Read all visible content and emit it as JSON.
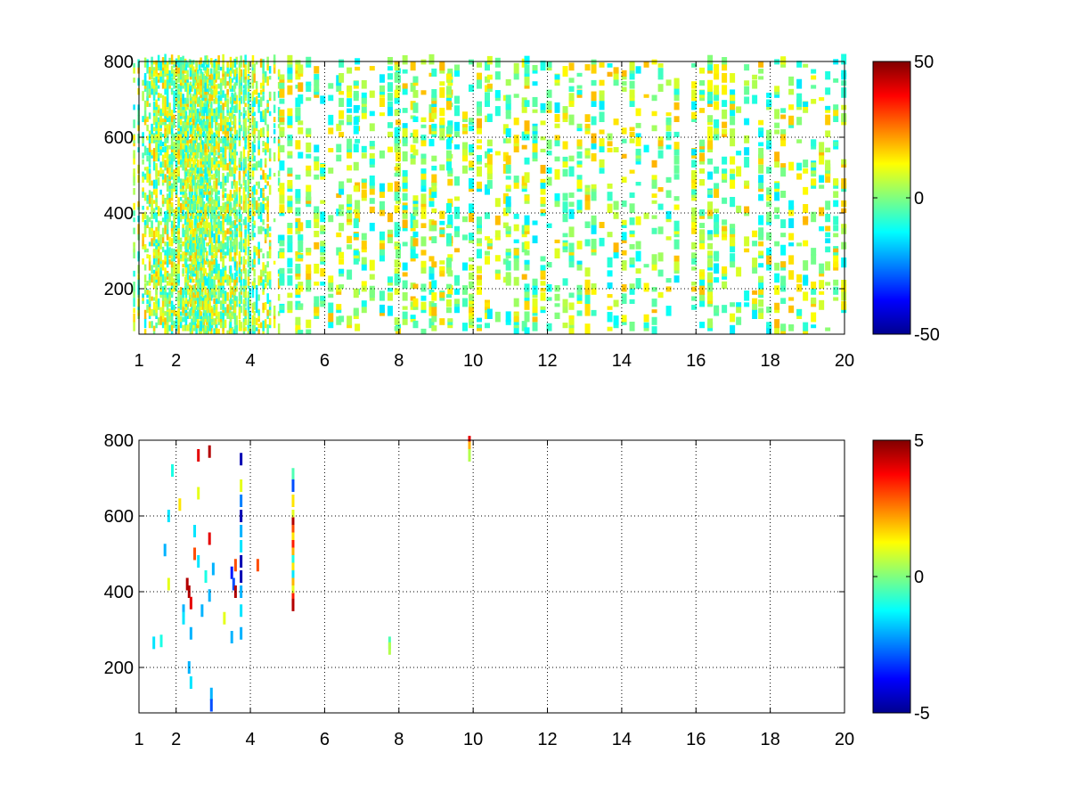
{
  "chart_data": [
    {
      "type": "heatmap",
      "title": "",
      "xlabel": "",
      "ylabel": "",
      "xlim": [
        1,
        20
      ],
      "ylim": [
        80,
        800
      ],
      "xticks": [
        1,
        2,
        4,
        6,
        8,
        10,
        12,
        14,
        16,
        18,
        20
      ],
      "yticks": [
        200,
        400,
        600,
        800
      ],
      "grid": true,
      "grid_style": "dotted",
      "colormap": "jet",
      "colorbar": {
        "range": [
          -50,
          50
        ],
        "ticks": [
          50,
          0,
          -50
        ],
        "tick_labels": [
          "50",
          "0",
          "-50"
        ]
      },
      "cell_value_range": [
        -15,
        20
      ],
      "band_x_centers": [
        1.2,
        1.5,
        1.8,
        2.1,
        2.4,
        2.6,
        2.8,
        3.0,
        3.3,
        3.6,
        3.8,
        4.2,
        4.5,
        5.1,
        5.6,
        6.2,
        6.7,
        7.1,
        7.8,
        8.2,
        8.7,
        9.2,
        9.6,
        10.2,
        10.7,
        11.2,
        11.7,
        12.3,
        12.9,
        13.5,
        14.1,
        14.7,
        15.3,
        16.2,
        16.8,
        17.4,
        18.0,
        18.6,
        19.2,
        19.8
      ],
      "band_density": [
        0.35,
        0.4,
        0.45,
        0.5,
        0.55,
        0.6,
        0.6,
        0.55,
        0.45,
        0.4,
        0.5,
        0.35,
        0.25,
        0.3,
        0.2,
        0.18,
        0.2,
        0.22,
        0.25,
        0.22,
        0.2,
        0.28,
        0.2,
        0.3,
        0.2,
        0.22,
        0.25,
        0.2,
        0.22,
        0.2,
        0.2,
        0.18,
        0.2,
        0.3,
        0.2,
        0.18,
        0.25,
        0.2,
        0.2,
        0.25
      ],
      "note_values": "Dense scattered cells across full y range; mostly values between -15 and 20 (cyan/green/yellow)."
    },
    {
      "type": "heatmap",
      "title": "",
      "xlabel": "",
      "ylabel": "",
      "xlim": [
        1,
        20
      ],
      "ylim": [
        80,
        800
      ],
      "xticks": [
        1,
        2,
        4,
        6,
        8,
        10,
        12,
        14,
        16,
        18,
        20
      ],
      "yticks": [
        200,
        400,
        600,
        800
      ],
      "grid": true,
      "grid_style": "dotted",
      "colormap": "jet",
      "colorbar": {
        "range": [
          -5,
          5
        ],
        "ticks": [
          5,
          0,
          -5
        ],
        "tick_labels": [
          "5",
          "0",
          "-5"
        ]
      },
      "cells": [
        {
          "x": 1.4,
          "y": 265,
          "v": -1.5
        },
        {
          "x": 1.6,
          "y": 270,
          "v": -1
        },
        {
          "x": 1.7,
          "y": 510,
          "v": -2
        },
        {
          "x": 1.8,
          "y": 600,
          "v": -1.5
        },
        {
          "x": 1.8,
          "y": 420,
          "v": 1
        },
        {
          "x": 1.9,
          "y": 720,
          "v": -1
        },
        {
          "x": 2.1,
          "y": 630,
          "v": 1.5
        },
        {
          "x": 2.2,
          "y": 350,
          "v": -2
        },
        {
          "x": 2.2,
          "y": 330,
          "v": -1.5
        },
        {
          "x": 2.3,
          "y": 420,
          "v": 4.5
        },
        {
          "x": 2.35,
          "y": 400,
          "v": 4.5
        },
        {
          "x": 2.4,
          "y": 370,
          "v": 4
        },
        {
          "x": 2.4,
          "y": 290,
          "v": -2
        },
        {
          "x": 2.4,
          "y": 160,
          "v": -1.5
        },
        {
          "x": 2.35,
          "y": 200,
          "v": -2
        },
        {
          "x": 2.5,
          "y": 500,
          "v": 3
        },
        {
          "x": 2.5,
          "y": 560,
          "v": -1.5
        },
        {
          "x": 2.6,
          "y": 480,
          "v": -1.5
        },
        {
          "x": 2.6,
          "y": 660,
          "v": 1
        },
        {
          "x": 2.6,
          "y": 760,
          "v": 4
        },
        {
          "x": 2.7,
          "y": 350,
          "v": -2
        },
        {
          "x": 2.8,
          "y": 440,
          "v": -1
        },
        {
          "x": 2.9,
          "y": 770,
          "v": 4.5
        },
        {
          "x": 2.9,
          "y": 540,
          "v": 4
        },
        {
          "x": 2.9,
          "y": 390,
          "v": -2
        },
        {
          "x": 2.95,
          "y": 130,
          "v": -2
        },
        {
          "x": 2.95,
          "y": 100,
          "v": -3
        },
        {
          "x": 3.0,
          "y": 460,
          "v": -2
        },
        {
          "x": 3.3,
          "y": 330,
          "v": 1
        },
        {
          "x": 3.5,
          "y": 450,
          "v": -3.5
        },
        {
          "x": 3.55,
          "y": 420,
          "v": -3
        },
        {
          "x": 3.5,
          "y": 280,
          "v": -2
        },
        {
          "x": 3.6,
          "y": 470,
          "v": 3
        },
        {
          "x": 3.6,
          "y": 400,
          "v": 4.5
        },
        {
          "x": 3.75,
          "y": 750,
          "v": -4.5
        },
        {
          "x": 3.75,
          "y": 680,
          "v": 1
        },
        {
          "x": 3.75,
          "y": 640,
          "v": -2.5
        },
        {
          "x": 3.75,
          "y": 600,
          "v": -4.5
        },
        {
          "x": 3.75,
          "y": 560,
          "v": -2
        },
        {
          "x": 3.75,
          "y": 520,
          "v": -1.5
        },
        {
          "x": 3.75,
          "y": 480,
          "v": -4.5
        },
        {
          "x": 3.75,
          "y": 440,
          "v": -4.5
        },
        {
          "x": 3.75,
          "y": 400,
          "v": -2
        },
        {
          "x": 3.75,
          "y": 350,
          "v": -1.5
        },
        {
          "x": 3.75,
          "y": 290,
          "v": -2
        },
        {
          "x": 4.2,
          "y": 470,
          "v": 3
        },
        {
          "x": 5.15,
          "y": 710,
          "v": -0.5
        },
        {
          "x": 5.15,
          "y": 680,
          "v": -3
        },
        {
          "x": 5.15,
          "y": 640,
          "v": 1.5
        },
        {
          "x": 5.15,
          "y": 600,
          "v": 1
        },
        {
          "x": 5.15,
          "y": 580,
          "v": 4.5
        },
        {
          "x": 5.15,
          "y": 560,
          "v": 3
        },
        {
          "x": 5.15,
          "y": 540,
          "v": 1.5
        },
        {
          "x": 5.15,
          "y": 520,
          "v": 3.5
        },
        {
          "x": 5.15,
          "y": 500,
          "v": 2
        },
        {
          "x": 5.15,
          "y": 480,
          "v": -1
        },
        {
          "x": 5.15,
          "y": 460,
          "v": 1.5
        },
        {
          "x": 5.15,
          "y": 440,
          "v": -1.5
        },
        {
          "x": 5.15,
          "y": 420,
          "v": 2
        },
        {
          "x": 5.15,
          "y": 400,
          "v": 1
        },
        {
          "x": 5.15,
          "y": 380,
          "v": 3.5
        },
        {
          "x": 5.15,
          "y": 365,
          "v": 4.5
        },
        {
          "x": 7.75,
          "y": 265,
          "v": -0.5
        },
        {
          "x": 7.75,
          "y": 250,
          "v": 0.5
        },
        {
          "x": 9.9,
          "y": 795,
          "v": 4
        },
        {
          "x": 9.9,
          "y": 780,
          "v": 2
        },
        {
          "x": 9.9,
          "y": 760,
          "v": 0.5
        }
      ]
    }
  ]
}
